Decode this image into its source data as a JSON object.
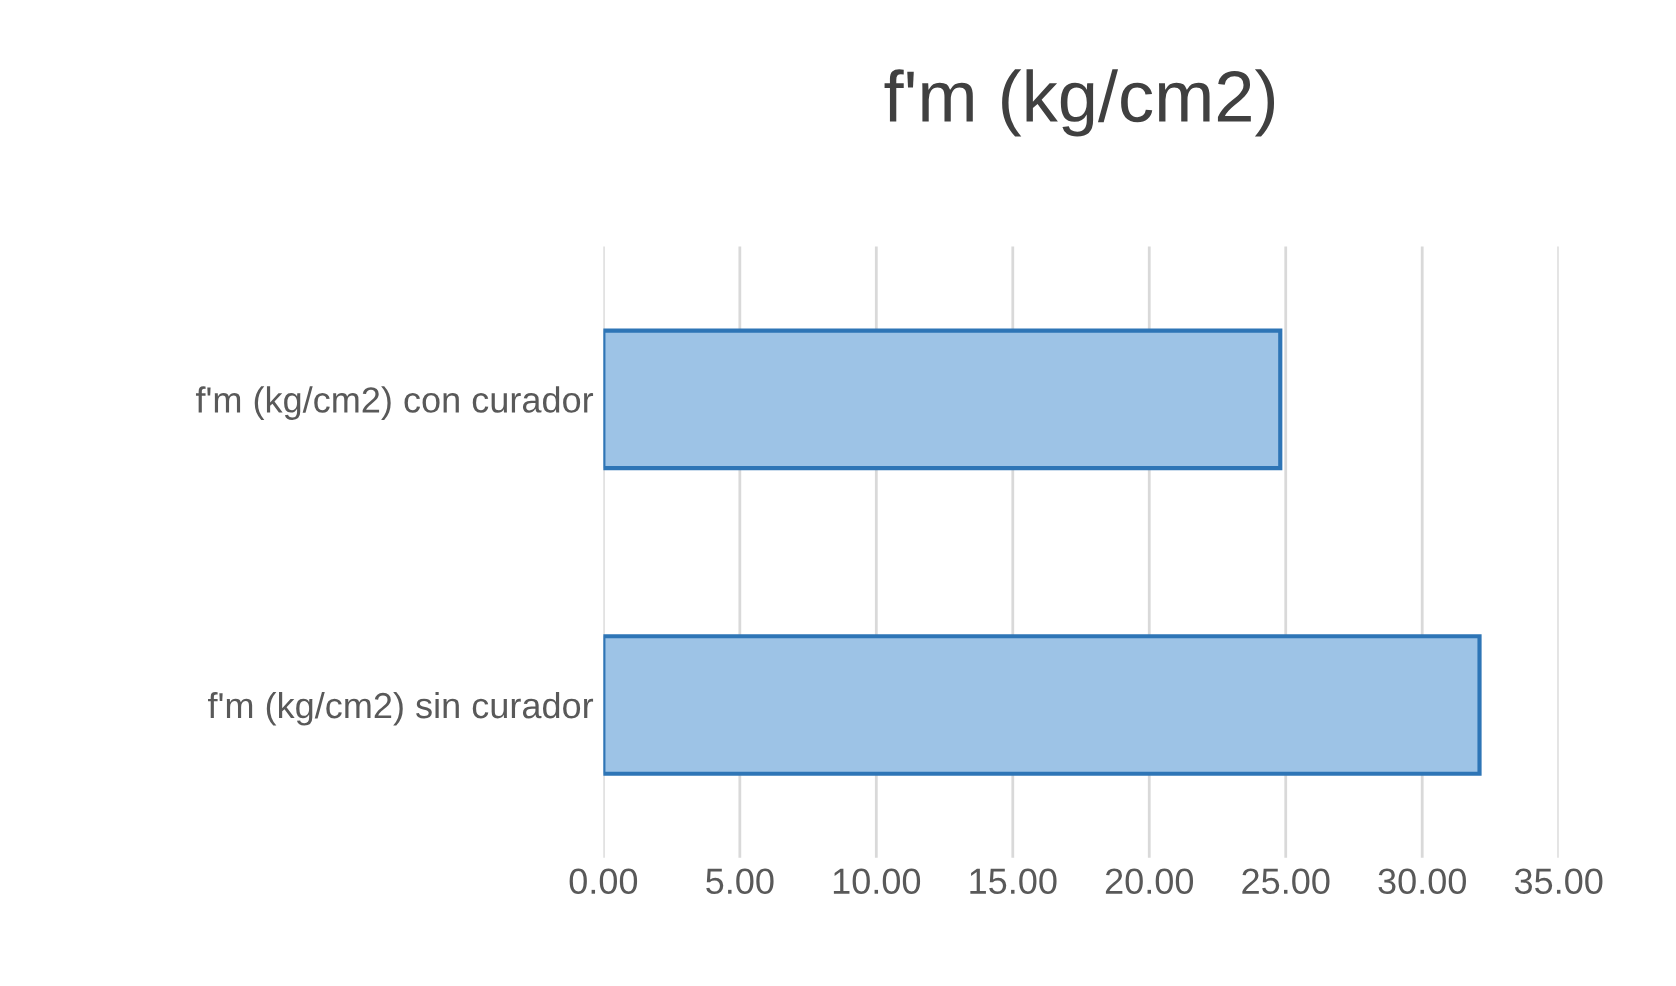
{
  "chart_data": {
    "type": "bar",
    "orientation": "horizontal",
    "title": "f'm (kg/cm2)",
    "categories": [
      "f'm (kg/cm2) con curador",
      "f'm (kg/cm2) sin curador"
    ],
    "values": [
      24.8,
      32.1
    ],
    "color": "#9dc3e6",
    "xlim": [
      0,
      35
    ],
    "xticks": [
      {
        "value": 0,
        "label": "0.00"
      },
      {
        "value": 5,
        "label": "5.00"
      },
      {
        "value": 10,
        "label": "10.00"
      },
      {
        "value": 15,
        "label": "15.00"
      },
      {
        "value": 20,
        "label": "20.00"
      },
      {
        "value": 25,
        "label": "25.00"
      },
      {
        "value": 30,
        "label": "30.00"
      },
      {
        "value": 35,
        "label": "35.00"
      }
    ],
    "grid": "x",
    "legend": false
  }
}
